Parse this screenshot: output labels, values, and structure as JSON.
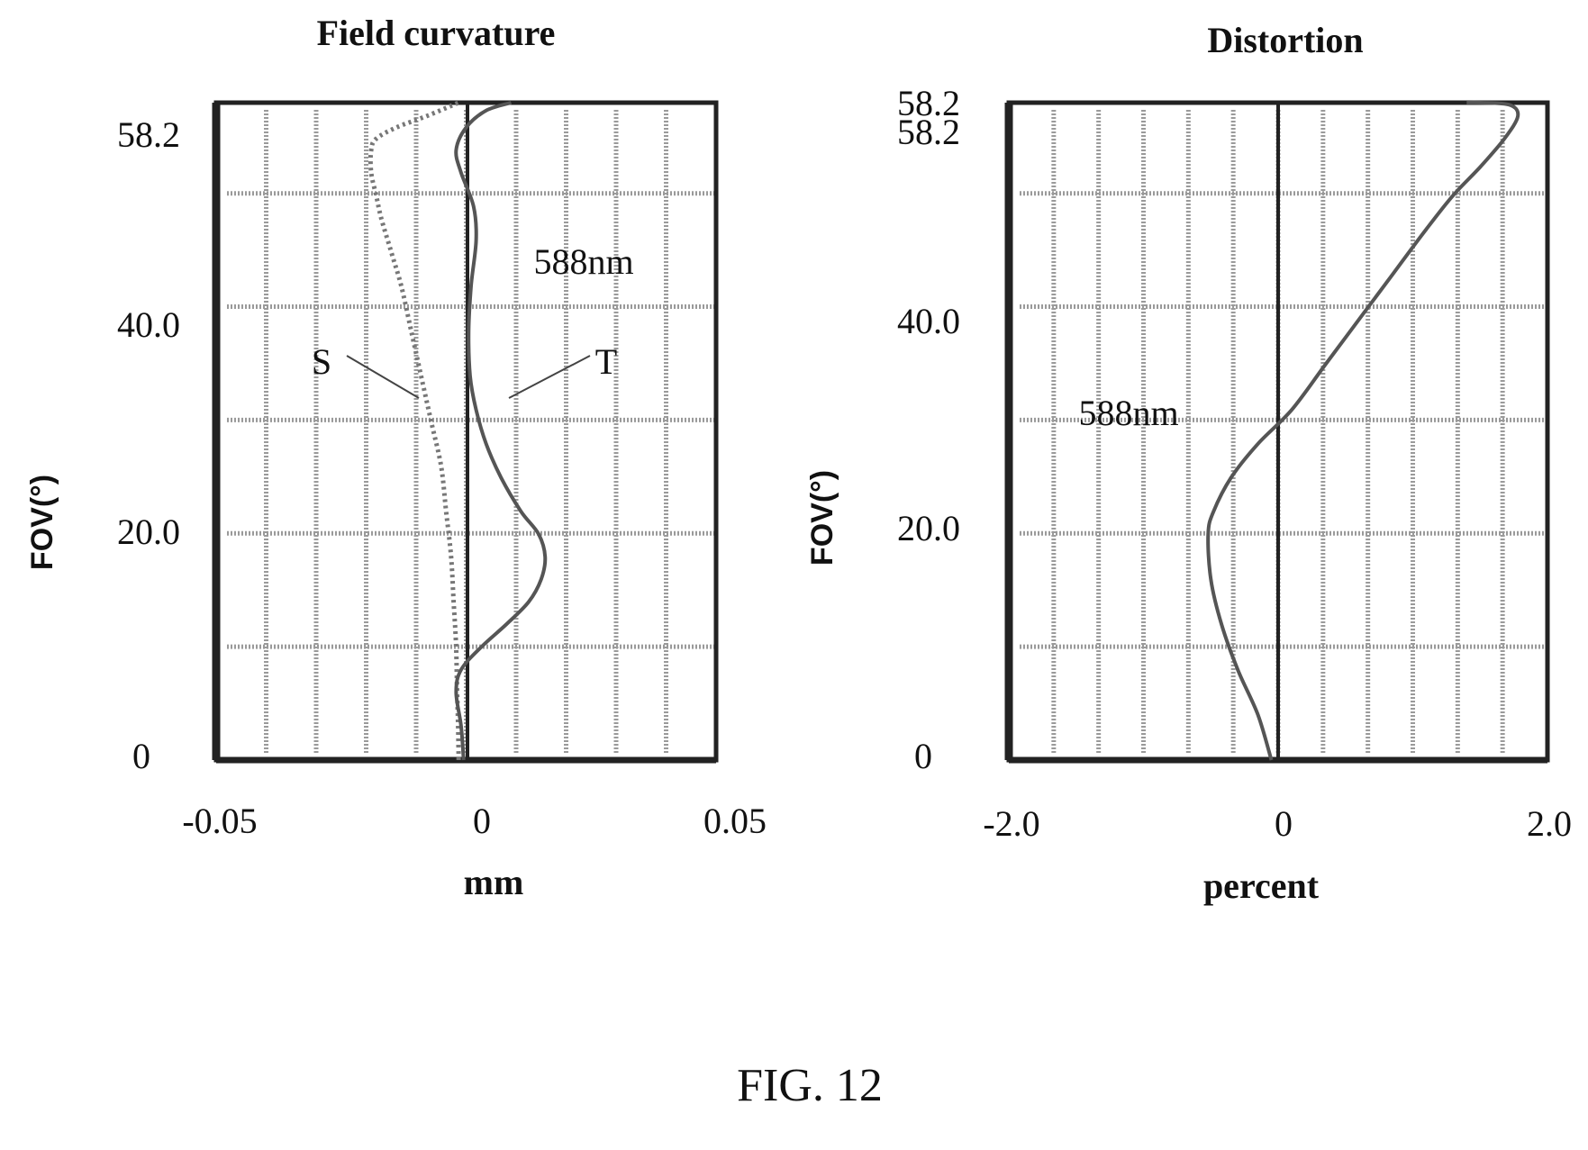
{
  "figure_caption": "FIG. 12",
  "chart_data": [
    {
      "type": "line",
      "title": "Field curvature",
      "xlabel": "mm",
      "ylabel": "FOV(°)",
      "wavelength_label": "588nm",
      "xlim": [
        -0.05,
        0.05
      ],
      "ylim": [
        0,
        58.2
      ],
      "x_ticks": [
        "-0.05",
        "0",
        "0.05"
      ],
      "y_ticks": [
        "0",
        "20.0",
        "40.0",
        "58.2"
      ],
      "grid": true,
      "series": [
        {
          "name": "S",
          "style": "dotted",
          "x": [
            -0.0015,
            -0.0016,
            -0.0018,
            -0.002,
            -0.0025,
            -0.003,
            -0.004,
            -0.005,
            -0.007,
            -0.009,
            -0.011,
            -0.013,
            -0.015,
            -0.017,
            -0.018,
            -0.019,
            -0.019,
            -0.018,
            -0.014,
            -0.008,
            -0.0015
          ],
          "y": [
            0,
            3,
            6,
            10,
            14,
            18,
            22,
            26,
            30,
            34,
            38,
            42,
            45,
            48,
            50,
            52,
            54,
            55,
            56,
            57,
            58.2
          ]
        },
        {
          "name": "T",
          "style": "solid",
          "x": [
            -0.0005,
            -0.001,
            -0.002,
            -0.001,
            0.003,
            0.008,
            0.0125,
            0.015,
            0.0158,
            0.0145,
            0.011,
            0.007,
            0.004,
            0.002,
            0.0008,
            0.0005,
            0.001,
            0.002,
            0.0015,
            -0.001,
            -0.002,
            0.0,
            0.004,
            0.009
          ],
          "y": [
            0,
            3,
            6,
            8,
            10,
            12,
            14,
            16,
            18,
            20,
            22,
            25,
            28,
            31,
            34,
            38,
            42,
            46,
            49,
            52,
            54,
            56,
            57.5,
            58.2
          ]
        }
      ],
      "annotations": [
        "S",
        "T"
      ]
    },
    {
      "type": "line",
      "title": "Distortion",
      "xlabel": "percent",
      "ylabel": "FOV(°)",
      "wavelength_label": "588nm",
      "xlim": [
        -2.0,
        2.0
      ],
      "ylim": [
        0,
        58.2
      ],
      "x_ticks": [
        "-2.0",
        "0",
        "2.0"
      ],
      "y_ticks": [
        "0",
        "20.0",
        "40.0",
        "58.2",
        "58.2"
      ],
      "grid": true,
      "series": [
        {
          "style": "solid",
          "x": [
            -0.05,
            -0.15,
            -0.3,
            -0.42,
            -0.5,
            -0.52,
            -0.48,
            -0.35,
            -0.15,
            0.1,
            0.35,
            0.6,
            0.85,
            1.1,
            1.3,
            1.5,
            1.68,
            1.78,
            1.72,
            1.5,
            1.4
          ],
          "y": [
            0,
            4,
            8,
            12,
            16,
            20,
            22,
            25,
            28,
            31,
            35,
            39,
            43,
            47,
            50,
            52.5,
            55,
            57,
            58,
            58.2,
            58.2
          ]
        }
      ]
    }
  ]
}
